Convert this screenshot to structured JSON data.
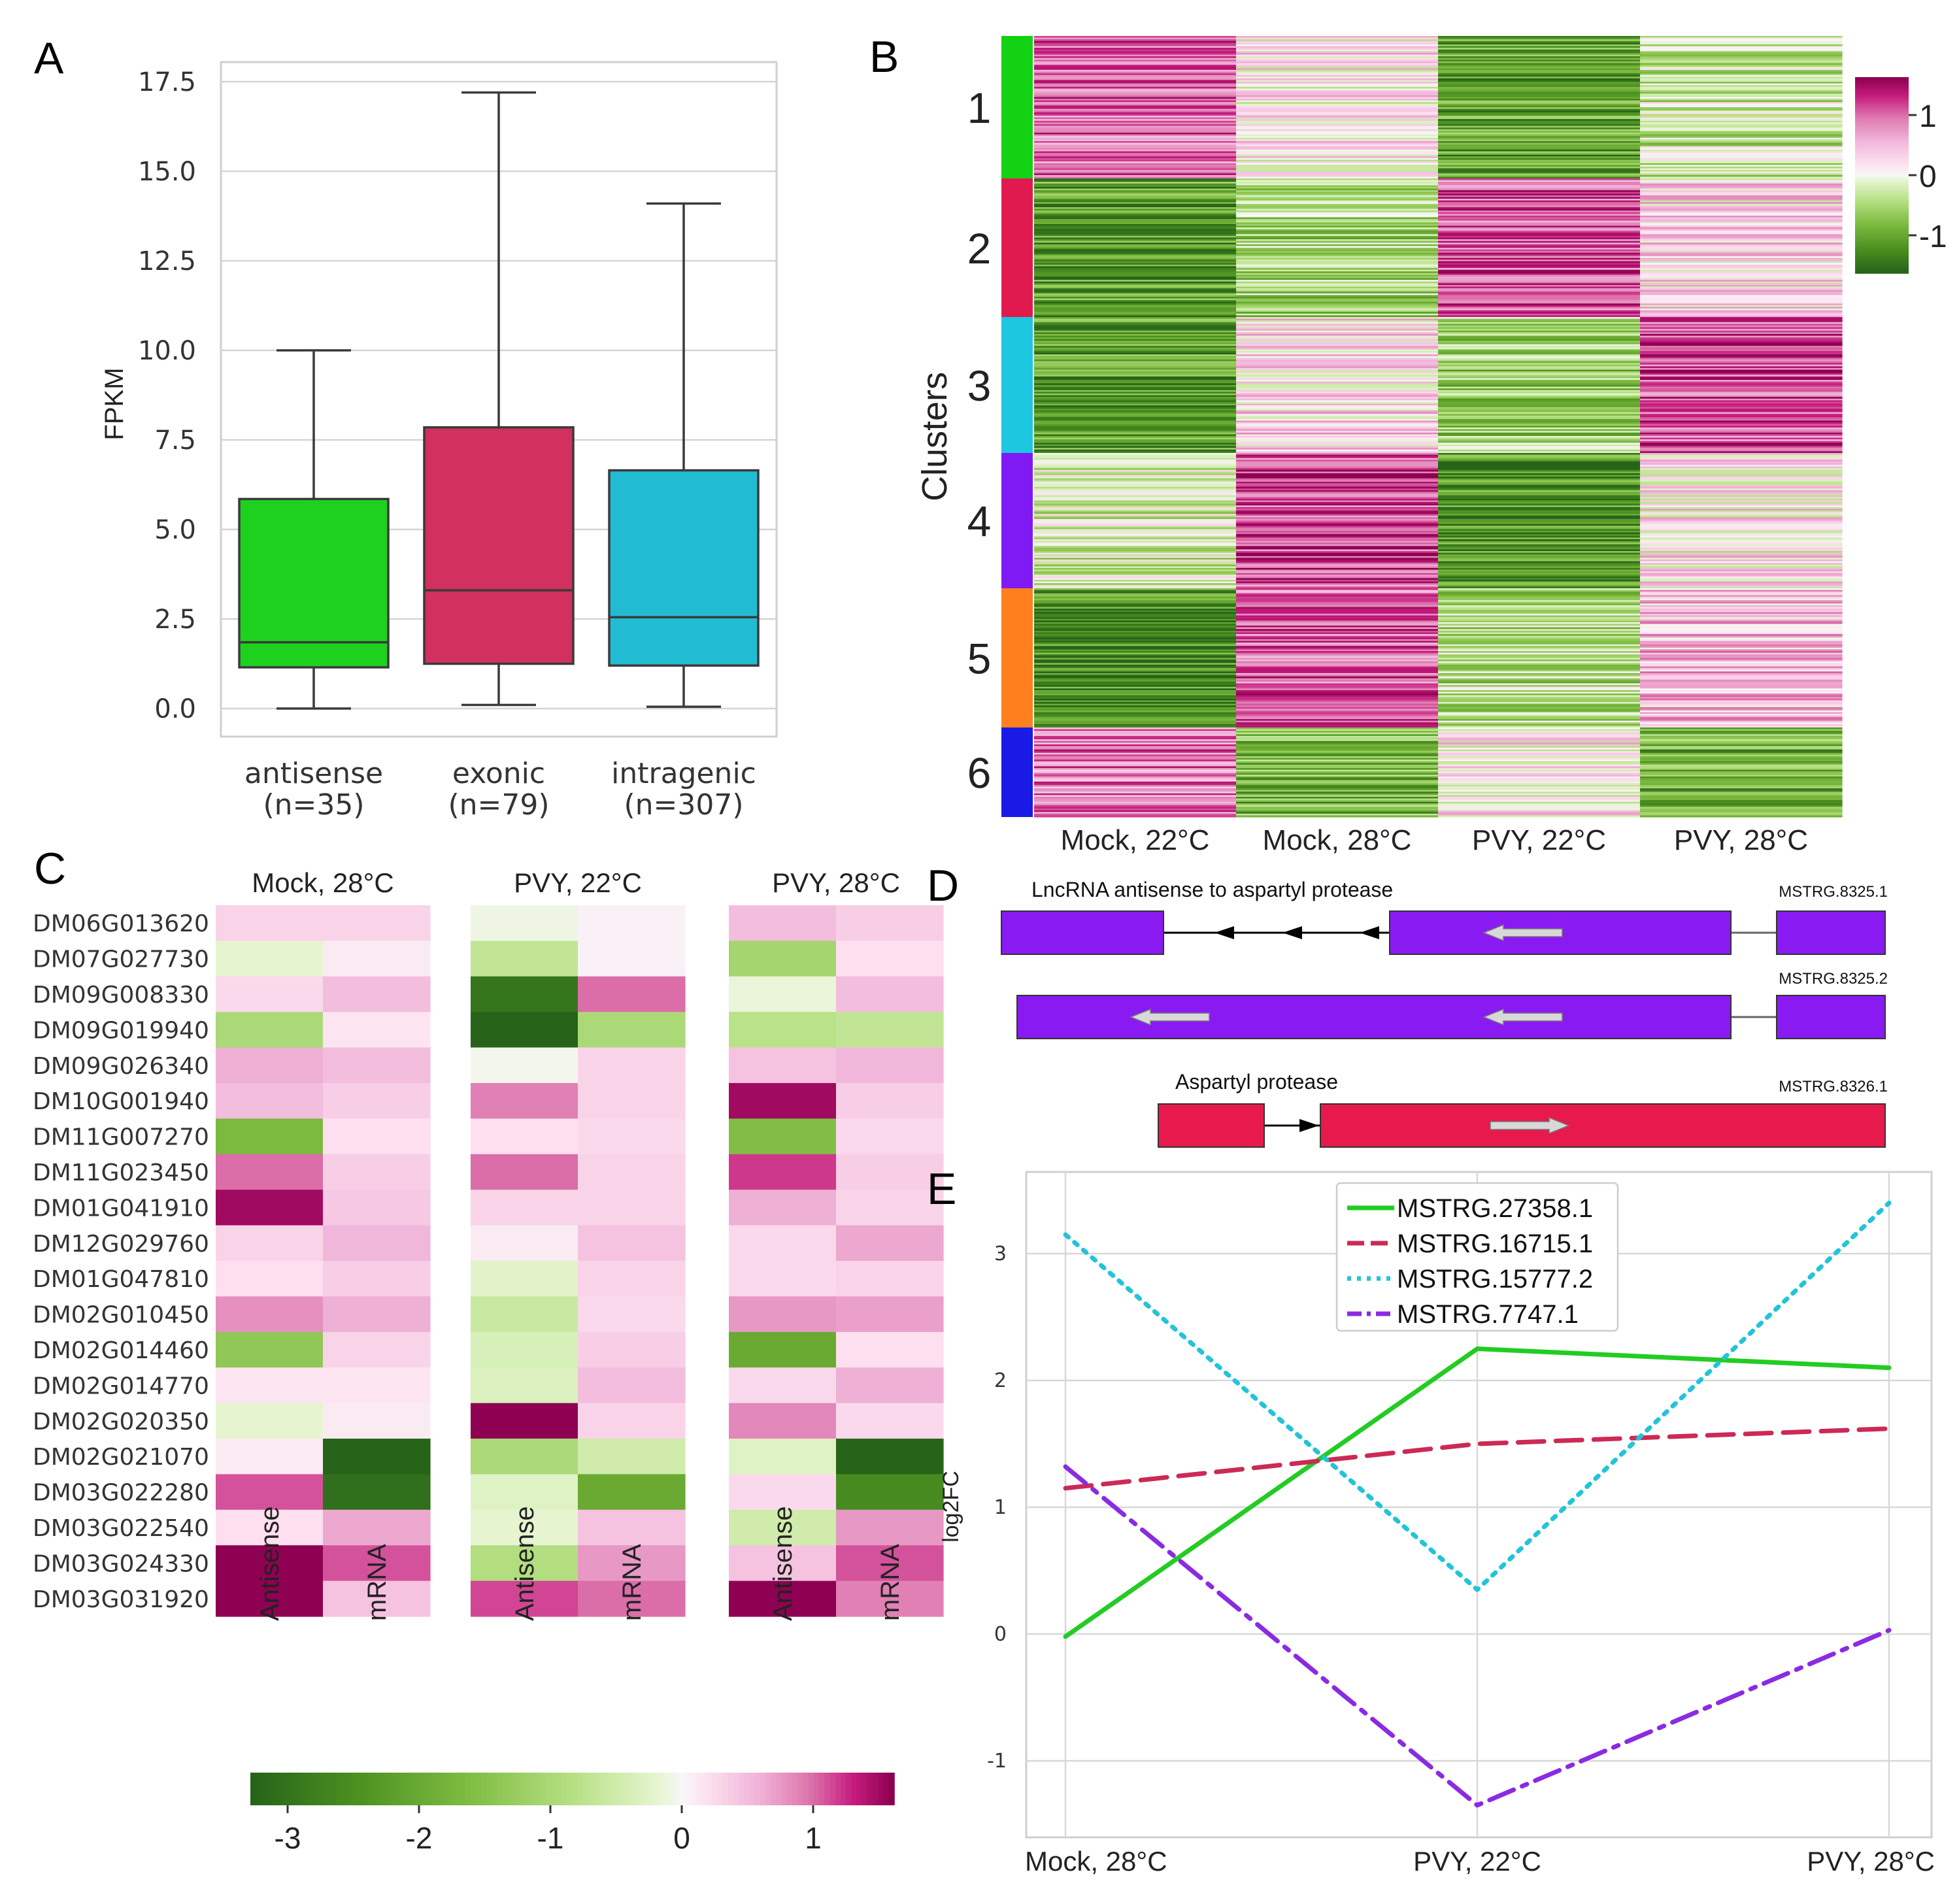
{
  "colors": {
    "antisense": "#1fd11f",
    "exonic": "#d2305e",
    "intragenic": "#21bcd2",
    "cluster_colors": [
      "#13d113",
      "#e01a4f",
      "#1ec7e0",
      "#7f1af5",
      "#ff7f1e",
      "#1a1ae6"
    ],
    "gene_box": "#8a1af2",
    "protease_box": "#e81a4d",
    "line_colors": [
      "#22cc22",
      "#cc2a55",
      "#22c4d8",
      "#8a2be2"
    ]
  },
  "panels": {
    "a": {
      "letter": "A"
    },
    "b": {
      "letter": "B"
    },
    "c": {
      "letter": "C"
    },
    "d": {
      "letter": "D"
    },
    "e": {
      "letter": "E"
    }
  },
  "chart_data": [
    {
      "id": "A",
      "type": "box",
      "ylabel": "FPKM",
      "ylim": [
        0,
        18.4
      ],
      "yticks": [
        "0.0",
        "2.5",
        "5.0",
        "7.5",
        "10.0",
        "12.5",
        "15.0",
        "17.5"
      ],
      "groups": [
        {
          "label": "antisense",
          "n": "(n=35)",
          "min": 0.0,
          "q1": 1.15,
          "median": 1.85,
          "q3": 5.85,
          "max": 10.0
        },
        {
          "label": "exonic",
          "n": "(n=79)",
          "min": 0.1,
          "q1": 1.25,
          "median": 3.3,
          "q3": 7.85,
          "max": 17.2
        },
        {
          "label": "intragenic",
          "n": "(n=307)",
          "min": 0.05,
          "q1": 1.2,
          "median": 2.55,
          "q3": 6.65,
          "max": 14.1
        }
      ]
    },
    {
      "id": "B",
      "type": "heatmap",
      "ylabel": "Clusters",
      "clusters": [
        "1",
        "2",
        "3",
        "4",
        "5",
        "6"
      ],
      "columns": [
        "Mock, 22°C",
        "Mock, 28°C",
        "PVY, 22°C",
        "PVY, 28°C"
      ],
      "cluster_means": [
        [
          0.9,
          0.15,
          -1.0,
          -0.3
        ],
        [
          -1.0,
          -0.5,
          1.0,
          0.25
        ],
        [
          -1.0,
          0.3,
          -0.55,
          1.05
        ],
        [
          -0.2,
          1.05,
          -1.1,
          0.2
        ],
        [
          -1.2,
          0.95,
          -0.4,
          0.45
        ],
        [
          0.85,
          -0.8,
          0.15,
          -0.85
        ]
      ],
      "colorbar": {
        "ticks": [
          "1",
          "0",
          "-1"
        ],
        "range": [
          -1.5,
          1.5
        ]
      }
    },
    {
      "id": "C",
      "type": "heatmap",
      "conditions": [
        "Mock, 28°C",
        "PVY, 22°C",
        "PVY, 28°C"
      ],
      "subcolumns": [
        "Antisense",
        "mRNA"
      ],
      "genes": [
        "DM06G013620",
        "DM07G027730",
        "DM09G008330",
        "DM09G019940",
        "DM09G026340",
        "DM10G001940",
        "DM11G007270",
        "DM11G023450",
        "DM01G041910",
        "DM12G029760",
        "DM01G047810",
        "DM02G010450",
        "DM02G014460",
        "DM02G014770",
        "DM02G020350",
        "DM02G021070",
        "DM03G022280",
        "DM03G022540",
        "DM03G024330",
        "DM03G031920"
      ],
      "values": [
        [
          0.3,
          0.3,
          -0.1,
          0.05,
          0.5,
          0.35
        ],
        [
          -0.2,
          0.1,
          -0.7,
          0.05,
          -1.1,
          0.2
        ],
        [
          0.25,
          0.5,
          -3.0,
          1.0,
          -0.15,
          0.5
        ],
        [
          -1.0,
          0.15,
          -3.3,
          -1.0,
          -0.8,
          -0.7
        ],
        [
          0.6,
          0.5,
          -0.05,
          0.3,
          0.45,
          0.55
        ],
        [
          0.5,
          0.35,
          0.9,
          0.3,
          1.5,
          0.35
        ],
        [
          -1.7,
          0.2,
          0.2,
          0.25,
          -1.6,
          0.25
        ],
        [
          1.0,
          0.35,
          1.0,
          0.3,
          1.2,
          0.35
        ],
        [
          1.5,
          0.4,
          0.3,
          0.3,
          0.6,
          0.3
        ],
        [
          0.3,
          0.55,
          0.1,
          0.45,
          0.25,
          0.65
        ],
        [
          0.2,
          0.35,
          -0.25,
          0.3,
          0.25,
          0.3
        ],
        [
          0.8,
          0.6,
          -0.6,
          0.25,
          0.75,
          0.7
        ],
        [
          -1.4,
          0.3,
          -0.4,
          0.35,
          -2.0,
          0.2
        ],
        [
          0.15,
          0.15,
          -0.35,
          0.5,
          0.25,
          0.6
        ],
        [
          -0.2,
          0.1,
          1.8,
          0.3,
          0.85,
          0.25
        ],
        [
          0.1,
          -3.3,
          -1.0,
          -0.5,
          -0.3,
          -3.3
        ],
        [
          1.1,
          -3.1,
          -0.3,
          -2.0,
          0.25,
          -2.6
        ],
        [
          0.2,
          0.65,
          -0.2,
          0.45,
          -0.5,
          0.75
        ],
        [
          1.8,
          1.1,
          -0.9,
          0.75,
          0.45,
          1.1
        ],
        [
          1.9,
          0.45,
          1.15,
          1.0,
          1.9,
          0.9
        ]
      ],
      "colorbar": {
        "ticks": [
          "-3",
          "-2",
          "-1",
          "0",
          "1"
        ],
        "range": [
          -3.3,
          1.6
        ]
      }
    },
    {
      "id": "D",
      "type": "gene_structure",
      "tracks": [
        {
          "title": "LncRNA antisense to aspartyl protease",
          "id": "MSTRG.8325.1"
        },
        {
          "title": "",
          "id": "MSTRG.8325.2"
        },
        {
          "title": "Aspartyl protease",
          "id": "MSTRG.8326.1"
        }
      ]
    },
    {
      "id": "E",
      "type": "line",
      "ylabel": "log2FC",
      "categories": [
        "Mock, 28°C",
        "PVY, 22°C",
        "PVY, 28°C"
      ],
      "ylim": [
        -1.6,
        3.6
      ],
      "yticks": [
        "-1",
        "0",
        "1",
        "2",
        "3"
      ],
      "series": [
        {
          "name": "MSTRG.27358.1",
          "values": [
            -0.02,
            2.25,
            2.1
          ],
          "dash": ""
        },
        {
          "name": "MSTRG.16715.1",
          "values": [
            1.15,
            1.5,
            1.62
          ],
          "dash": "40,18"
        },
        {
          "name": "MSTRG.15777.2",
          "values": [
            3.15,
            0.35,
            3.4
          ],
          "dash": "6,12"
        },
        {
          "name": "MSTRG.7747.1",
          "values": [
            1.32,
            -1.35,
            0.03
          ],
          "dash": "40,14,8,14"
        }
      ]
    }
  ]
}
